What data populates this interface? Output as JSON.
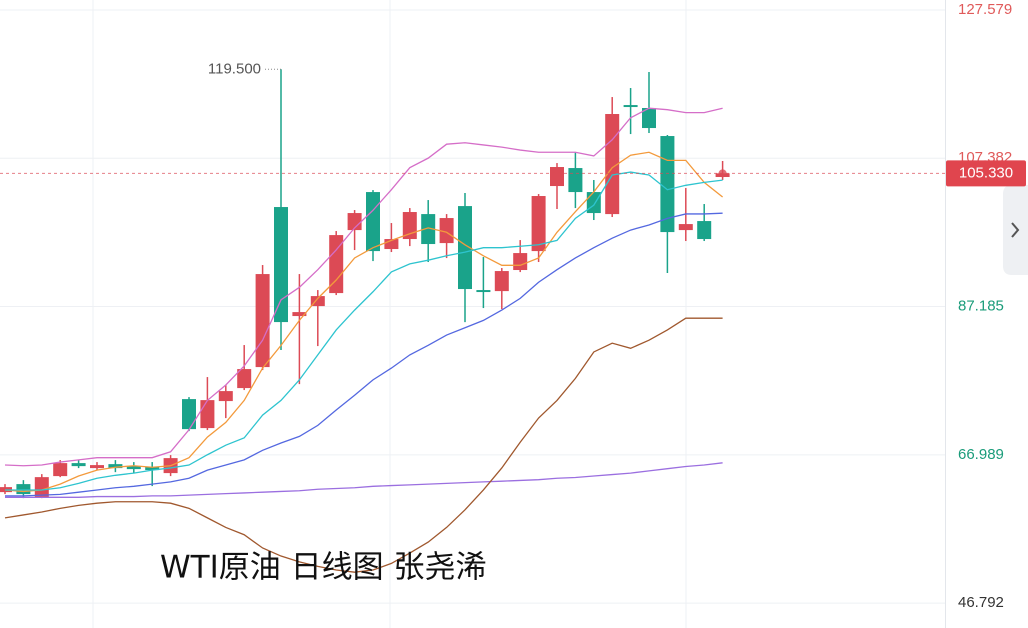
{
  "chart_data": {
    "type": "candlestick",
    "caption": "WTI原油 日线图 张尧浠",
    "ylim": [
      43.4,
      128.94
    ],
    "yticks": [
      127.579,
      107.382,
      87.185,
      66.989,
      46.792
    ],
    "ytick_colors": [
      "#e05a5a",
      "#e05a5a",
      "#1a9c7a",
      "#1a9c7a",
      "#333333"
    ],
    "grid": true,
    "up_color": "#dc4a55",
    "down_color": "#1aa38a",
    "open": [
      61.91,
      63.0,
      61.23,
      64.09,
      65.86,
      65.18,
      65.72,
      65.45,
      65.32,
      64.5,
      74.58,
      70.63,
      74.31,
      76.08,
      78.94,
      100.74,
      85.89,
      87.25,
      89.02,
      97.6,
      102.78,
      95.02,
      96.38,
      99.78,
      95.83,
      100.87,
      89.43,
      89.29,
      92.16,
      94.74,
      103.6,
      106.05,
      102.78,
      99.78,
      114.63,
      114.23,
      110.41,
      97.6,
      98.83,
      104.83
    ],
    "high": [
      63.0,
      63.54,
      64.36,
      66.27,
      66.27,
      66.0,
      66.27,
      66.0,
      66.0,
      66.95,
      74.85,
      77.58,
      76.49,
      81.94,
      92.84,
      119.5,
      91.61,
      89.43,
      97.47,
      100.33,
      103.05,
      98.56,
      100.6,
      101.69,
      99.78,
      102.65,
      93.93,
      92.43,
      96.24,
      102.51,
      106.73,
      108.23,
      104.42,
      115.72,
      116.95,
      119.13,
      110.55,
      103.33,
      101.15,
      107.01
    ],
    "low": [
      61.64,
      61.09,
      61.09,
      63.95,
      65.18,
      64.91,
      64.63,
      64.5,
      62.73,
      64.09,
      70.22,
      70.36,
      71.99,
      75.81,
      78.53,
      81.26,
      76.62,
      81.8,
      88.75,
      94.88,
      93.38,
      94.61,
      95.42,
      93.25,
      93.79,
      85.07,
      86.98,
      86.84,
      91.88,
      93.25,
      100.47,
      100.6,
      98.97,
      99.38,
      110.68,
      110.82,
      91.75,
      96.11,
      96.11,
      104.42
    ],
    "close": [
      62.59,
      61.64,
      63.95,
      65.86,
      65.45,
      65.59,
      65.18,
      65.04,
      64.91,
      66.54,
      70.49,
      74.44,
      75.67,
      78.67,
      91.61,
      85.07,
      86.43,
      88.61,
      96.92,
      99.92,
      94.74,
      96.38,
      100.06,
      95.7,
      99.24,
      89.57,
      89.16,
      92.02,
      94.47,
      102.24,
      106.19,
      102.78,
      99.92,
      113.41,
      114.36,
      111.5,
      97.33,
      98.42,
      96.38,
      105.33
    ],
    "high_annotation": {
      "value": 119.5,
      "label": "119.500"
    },
    "last_price": {
      "value": 105.33,
      "label": "105.330"
    },
    "series": [
      {
        "color": "#d56ec8",
        "values": [
          65.6,
          65.5,
          65.6,
          66.0,
          66.3,
          66.6,
          66.6,
          66.6,
          66.6,
          67.4,
          70.4,
          74.4,
          76.5,
          79.1,
          82.6,
          88.1,
          89.8,
          92.2,
          94.9,
          97.9,
          100.3,
          103.1,
          106.1,
          107.4,
          109.3,
          109.5,
          109.2,
          108.9,
          108.5,
          108.2,
          108.2,
          108.2,
          107.7,
          109.9,
          112.9,
          114.2,
          114.0,
          113.6,
          113.6,
          114.2
        ]
      },
      {
        "color": "#f39a3c",
        "values": [
          62.2,
          62.0,
          62.2,
          63.0,
          64.1,
          64.9,
          65.3,
          65.5,
          65.3,
          65.5,
          66.6,
          69.4,
          71.4,
          74.4,
          78.8,
          81.9,
          85.3,
          88.3,
          90.8,
          93.8,
          95.2,
          96.2,
          97.1,
          97.9,
          97.3,
          95.6,
          94.1,
          92.8,
          92.8,
          93.8,
          97.3,
          100.1,
          102.8,
          106.1,
          107.8,
          108.2,
          107.1,
          107.1,
          104.1,
          102.1
        ]
      },
      {
        "color": "#2ec4cf",
        "values": [
          62.2,
          62.2,
          62.2,
          62.5,
          63.1,
          63.8,
          64.2,
          64.5,
          64.9,
          65.2,
          65.6,
          67.0,
          68.3,
          69.3,
          72.4,
          74.4,
          77.2,
          80.6,
          84.0,
          86.7,
          89.2,
          91.9,
          93.0,
          93.5,
          94.1,
          94.6,
          95.2,
          95.2,
          95.4,
          95.6,
          96.2,
          99.2,
          101.0,
          105.1,
          105.5,
          105.1,
          103.1,
          103.7,
          104.1,
          104.4
        ]
      },
      {
        "color": "#5468e0",
        "values": [
          61.4,
          61.4,
          61.5,
          61.6,
          61.9,
          62.2,
          62.5,
          62.7,
          63.0,
          63.3,
          63.8,
          64.9,
          65.6,
          66.3,
          67.6,
          68.6,
          69.5,
          71.0,
          73.1,
          75.1,
          77.2,
          78.8,
          80.6,
          81.9,
          83.3,
          84.3,
          85.3,
          86.7,
          88.3,
          90.5,
          92.2,
          93.8,
          95.2,
          96.5,
          97.6,
          98.3,
          99.2,
          99.8,
          99.8,
          99.9
        ]
      },
      {
        "color": "#9b6fe0",
        "values": [
          61.2,
          61.2,
          61.2,
          61.2,
          61.2,
          61.3,
          61.3,
          61.3,
          61.4,
          61.4,
          61.5,
          61.6,
          61.7,
          61.8,
          61.9,
          62.0,
          62.1,
          62.3,
          62.4,
          62.5,
          62.7,
          62.8,
          62.9,
          63.0,
          63.1,
          63.2,
          63.3,
          63.4,
          63.5,
          63.6,
          63.8,
          63.9,
          64.1,
          64.3,
          64.5,
          64.8,
          65.1,
          65.4,
          65.6,
          65.9
        ]
      },
      {
        "color": "#a0582e",
        "values": [
          58.4,
          58.8,
          59.2,
          59.7,
          60.1,
          60.4,
          60.6,
          60.6,
          60.6,
          60.4,
          59.7,
          58.4,
          57.1,
          56.1,
          54.3,
          53.2,
          52.4,
          51.8,
          51.3,
          51.0,
          51.3,
          52.2,
          53.6,
          55.1,
          57.1,
          59.5,
          62.2,
          65.2,
          68.7,
          72.0,
          74.4,
          77.4,
          81.0,
          82.2,
          81.5,
          82.6,
          84.0,
          85.6,
          85.6,
          85.6
        ]
      }
    ]
  }
}
